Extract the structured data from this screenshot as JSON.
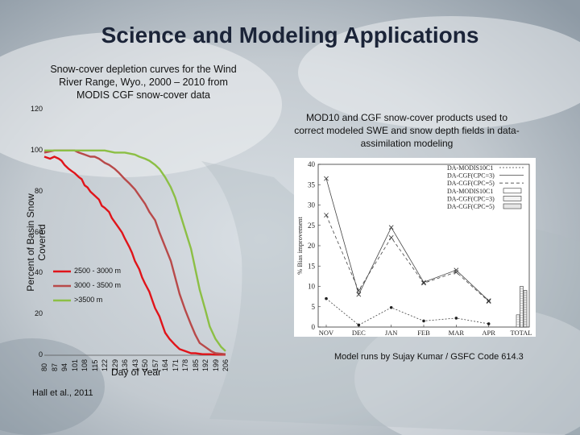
{
  "slide": {
    "title": "Science and Modeling Applications",
    "left_title": "Snow-cover depletion curves for the Wind River Range, Wyo., 2000 – 2010 from MODIS CGF snow-cover data",
    "right_title": "MOD10 and CGF snow-cover products used to correct modeled SWE and snow depth fields in data-assimilation modeling",
    "credit": "Model runs by Sujay Kumar / GSFC Code 614.3",
    "citation": "Hall et al., 2011"
  },
  "chart_data": [
    {
      "type": "line",
      "ylabel": "Percent of Basin Snow Covered",
      "xlabel": "Day of Year",
      "ylim": [
        0,
        120
      ],
      "xlim": [
        80,
        206
      ],
      "yticks": [
        "0",
        "20",
        "40",
        "60",
        "80",
        "100",
        "120"
      ],
      "xticks": [
        "80",
        "87",
        "94",
        "101",
        "108",
        "115",
        "122",
        "129",
        "136",
        "143",
        "150",
        "157",
        "164",
        "171",
        "178",
        "185",
        "192",
        "199",
        "206"
      ],
      "legend_position": "center-left",
      "series": [
        {
          "name": "2500 - 3000 m",
          "color": "#e0141a",
          "x": [
            80,
            84,
            87,
            90,
            92,
            94,
            97,
            99,
            101,
            104,
            106,
            108,
            110,
            112,
            115,
            118,
            120,
            122,
            125,
            127,
            129,
            132,
            134,
            136,
            139,
            141,
            143,
            146,
            148,
            150,
            153,
            155,
            157,
            160,
            162,
            164,
            167,
            171,
            174,
            178,
            182,
            185,
            190,
            195,
            199,
            206
          ],
          "y": [
            97,
            96,
            97,
            96,
            95,
            93,
            91,
            90,
            89,
            87,
            86,
            83,
            82,
            80,
            78,
            76,
            73,
            72,
            70,
            67,
            65,
            62,
            60,
            57,
            53,
            50,
            46,
            42,
            38,
            35,
            31,
            27,
            23,
            19,
            15,
            11,
            8,
            5,
            3,
            2,
            1,
            1,
            0.5,
            0.5,
            0.3,
            0.3
          ]
        },
        {
          "name": "3000 - 3500 m",
          "color": "#b84a4a",
          "x": [
            80,
            87,
            94,
            101,
            104,
            108,
            112,
            115,
            118,
            122,
            125,
            129,
            132,
            136,
            139,
            143,
            146,
            150,
            153,
            157,
            160,
            164,
            168,
            171,
            174,
            178,
            182,
            185,
            188,
            192,
            196,
            199,
            206
          ],
          "y": [
            99,
            100,
            100,
            100,
            99,
            98,
            97,
            97,
            96,
            94,
            93,
            91,
            89,
            86,
            84,
            81,
            78,
            74,
            70,
            66,
            60,
            53,
            46,
            38,
            30,
            22,
            15,
            10,
            6,
            4,
            2,
            1,
            0.5
          ]
        },
        {
          "name": ">3500 m",
          "color": "#8cbf45",
          "x": [
            80,
            87,
            94,
            101,
            108,
            115,
            122,
            129,
            136,
            143,
            146,
            150,
            153,
            157,
            160,
            164,
            168,
            171,
            174,
            178,
            182,
            185,
            188,
            192,
            195,
            199,
            203,
            206
          ],
          "y": [
            100,
            100,
            100,
            100,
            100,
            100,
            100,
            99,
            99,
            98,
            97,
            96,
            95,
            93,
            91,
            87,
            82,
            77,
            70,
            61,
            52,
            42,
            32,
            22,
            14,
            8,
            4,
            2
          ]
        }
      ]
    },
    {
      "type": "line",
      "ylabel": "% Bias improvement",
      "categories": [
        "NOV",
        "DEC",
        "JAN",
        "FEB",
        "MAR",
        "APR",
        "TOTAL"
      ],
      "ylim": [
        0,
        40
      ],
      "yticks": [
        "0",
        "5",
        "10",
        "15",
        "20",
        "25",
        "30",
        "35",
        "40"
      ],
      "legend_position": "top-right",
      "series": [
        {
          "name": "DA-MODIS10C1",
          "values": [
            7,
            0.5,
            4.8,
            1.5,
            2.2,
            0.8,
            null
          ]
        },
        {
          "name": "DA-CGF(CPC=3)",
          "values": [
            36.5,
            8,
            24.5,
            11,
            14,
            6.5,
            null
          ]
        },
        {
          "name": "DA-CGF(CPC=5)",
          "values": [
            27.5,
            9,
            22,
            10.8,
            13.5,
            6.3,
            null
          ]
        },
        {
          "name": "DA-MODIS10C1",
          "values": [
            null,
            null,
            null,
            null,
            null,
            null,
            3
          ]
        },
        {
          "name": "DA-CGF(CPC=3)",
          "values": [
            null,
            null,
            null,
            null,
            null,
            null,
            10
          ]
        },
        {
          "name": "DA-CGF(CPC=5)",
          "values": [
            null,
            null,
            null,
            null,
            null,
            null,
            9
          ]
        }
      ]
    }
  ]
}
